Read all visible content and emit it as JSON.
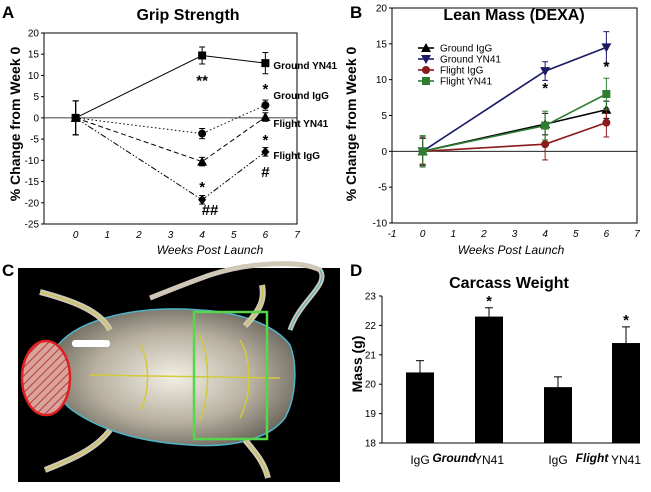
{
  "panels": {
    "A": "A",
    "B": "B",
    "C": "C",
    "D": "D"
  },
  "chart_data": [
    {
      "type": "line",
      "id": "grip",
      "title": "Grip Strength",
      "xlabel": "Weeks Post Launch",
      "ylabel": "% Change from Week 0",
      "xlim": [
        -1,
        7
      ],
      "ylim": [
        -25,
        20
      ],
      "xticks": [
        0,
        1,
        2,
        3,
        4,
        5,
        6,
        7
      ],
      "yticks": [
        -25,
        -20,
        -15,
        -10,
        -5,
        0,
        5,
        10,
        15,
        20
      ],
      "x": [
        0,
        4,
        6
      ],
      "series": [
        {
          "name": "Ground YN41",
          "values": [
            0,
            14.7,
            12.9
          ],
          "err": [
            4,
            2,
            2.5
          ],
          "style": "solid",
          "marker": "square"
        },
        {
          "name": "Ground IgG",
          "values": [
            0,
            -3.7,
            3.0
          ],
          "err": [
            4,
            1.2,
            1.2
          ],
          "style": "dotted",
          "marker": "circle"
        },
        {
          "name": "Flight YN41",
          "values": [
            0,
            -10.3,
            0.2
          ],
          "err": [
            4,
            1.0,
            1.0
          ],
          "style": "dashed",
          "marker": "triangle"
        },
        {
          "name": "Flight IgG",
          "values": [
            0,
            -19.3,
            -8.0
          ],
          "err": [
            4,
            1.0,
            1.0
          ],
          "style": "dashdotdot",
          "marker": "diamond"
        }
      ],
      "annotations": [
        {
          "text": "**",
          "x": 4,
          "y": 9
        },
        {
          "text": "*",
          "x": 6,
          "y": 7
        },
        {
          "text": "*",
          "x": 4,
          "y": -16
        },
        {
          "text": "*",
          "x": 6,
          "y": -5
        },
        {
          "text": "#",
          "x": 6,
          "y": -12.5
        },
        {
          "text": "##",
          "x": 4.25,
          "y": -21.5
        }
      ]
    },
    {
      "type": "line",
      "id": "lean",
      "title": "Lean Mass (DEXA)",
      "xlabel": "Weeks Post Launch",
      "ylabel": "% Change from Week 0",
      "xlim": [
        -1,
        7
      ],
      "ylim": [
        -10,
        20
      ],
      "xticks": [
        -1,
        0,
        1,
        2,
        3,
        4,
        5,
        6,
        7
      ],
      "yticks": [
        -10,
        -5,
        0,
        5,
        10,
        15,
        20
      ],
      "x": [
        0,
        4,
        6
      ],
      "series": [
        {
          "name": "Ground IgG",
          "values": [
            0,
            3.8,
            5.8
          ],
          "err": [
            2,
            1.5,
            1.2
          ],
          "marker": "triangle",
          "color": "#000000"
        },
        {
          "name": "Ground YN41",
          "values": [
            0,
            11.2,
            14.5
          ],
          "err": [
            1.8,
            1.3,
            2.2
          ],
          "marker": "invtriangle",
          "color": "#1a1a66"
        },
        {
          "name": "Flight IgG",
          "values": [
            0,
            1.0,
            4.0
          ],
          "err": [
            1.8,
            2.2,
            2.0
          ],
          "marker": "circle",
          "color": "#8b1a1a"
        },
        {
          "name": "Flight YN41",
          "values": [
            0,
            3.6,
            8.0
          ],
          "err": [
            2.2,
            2.0,
            2.2
          ],
          "marker": "square",
          "color": "#2e7d32"
        }
      ],
      "annotations": [
        {
          "text": "*",
          "x": 4,
          "y": 9
        },
        {
          "text": "*",
          "x": 6,
          "y": 12
        }
      ]
    },
    {
      "type": "bar",
      "id": "carcass",
      "title": "Carcass Weight",
      "ylabel": "Mass (g)",
      "ylim": [
        18,
        23
      ],
      "yticks": [
        18,
        19,
        20,
        21,
        22,
        23
      ],
      "categories": [
        "IgG",
        "YN41",
        "IgG",
        "YN41"
      ],
      "groups": [
        "Ground",
        "Flight"
      ],
      "values": [
        20.4,
        22.3,
        19.9,
        21.4
      ],
      "err": [
        0.4,
        0.3,
        0.35,
        0.55
      ],
      "significance": [
        "",
        "*",
        "",
        "*"
      ]
    }
  ],
  "image_panel": {
    "label": "C",
    "description_icon": "mouse-dexa-scan"
  }
}
